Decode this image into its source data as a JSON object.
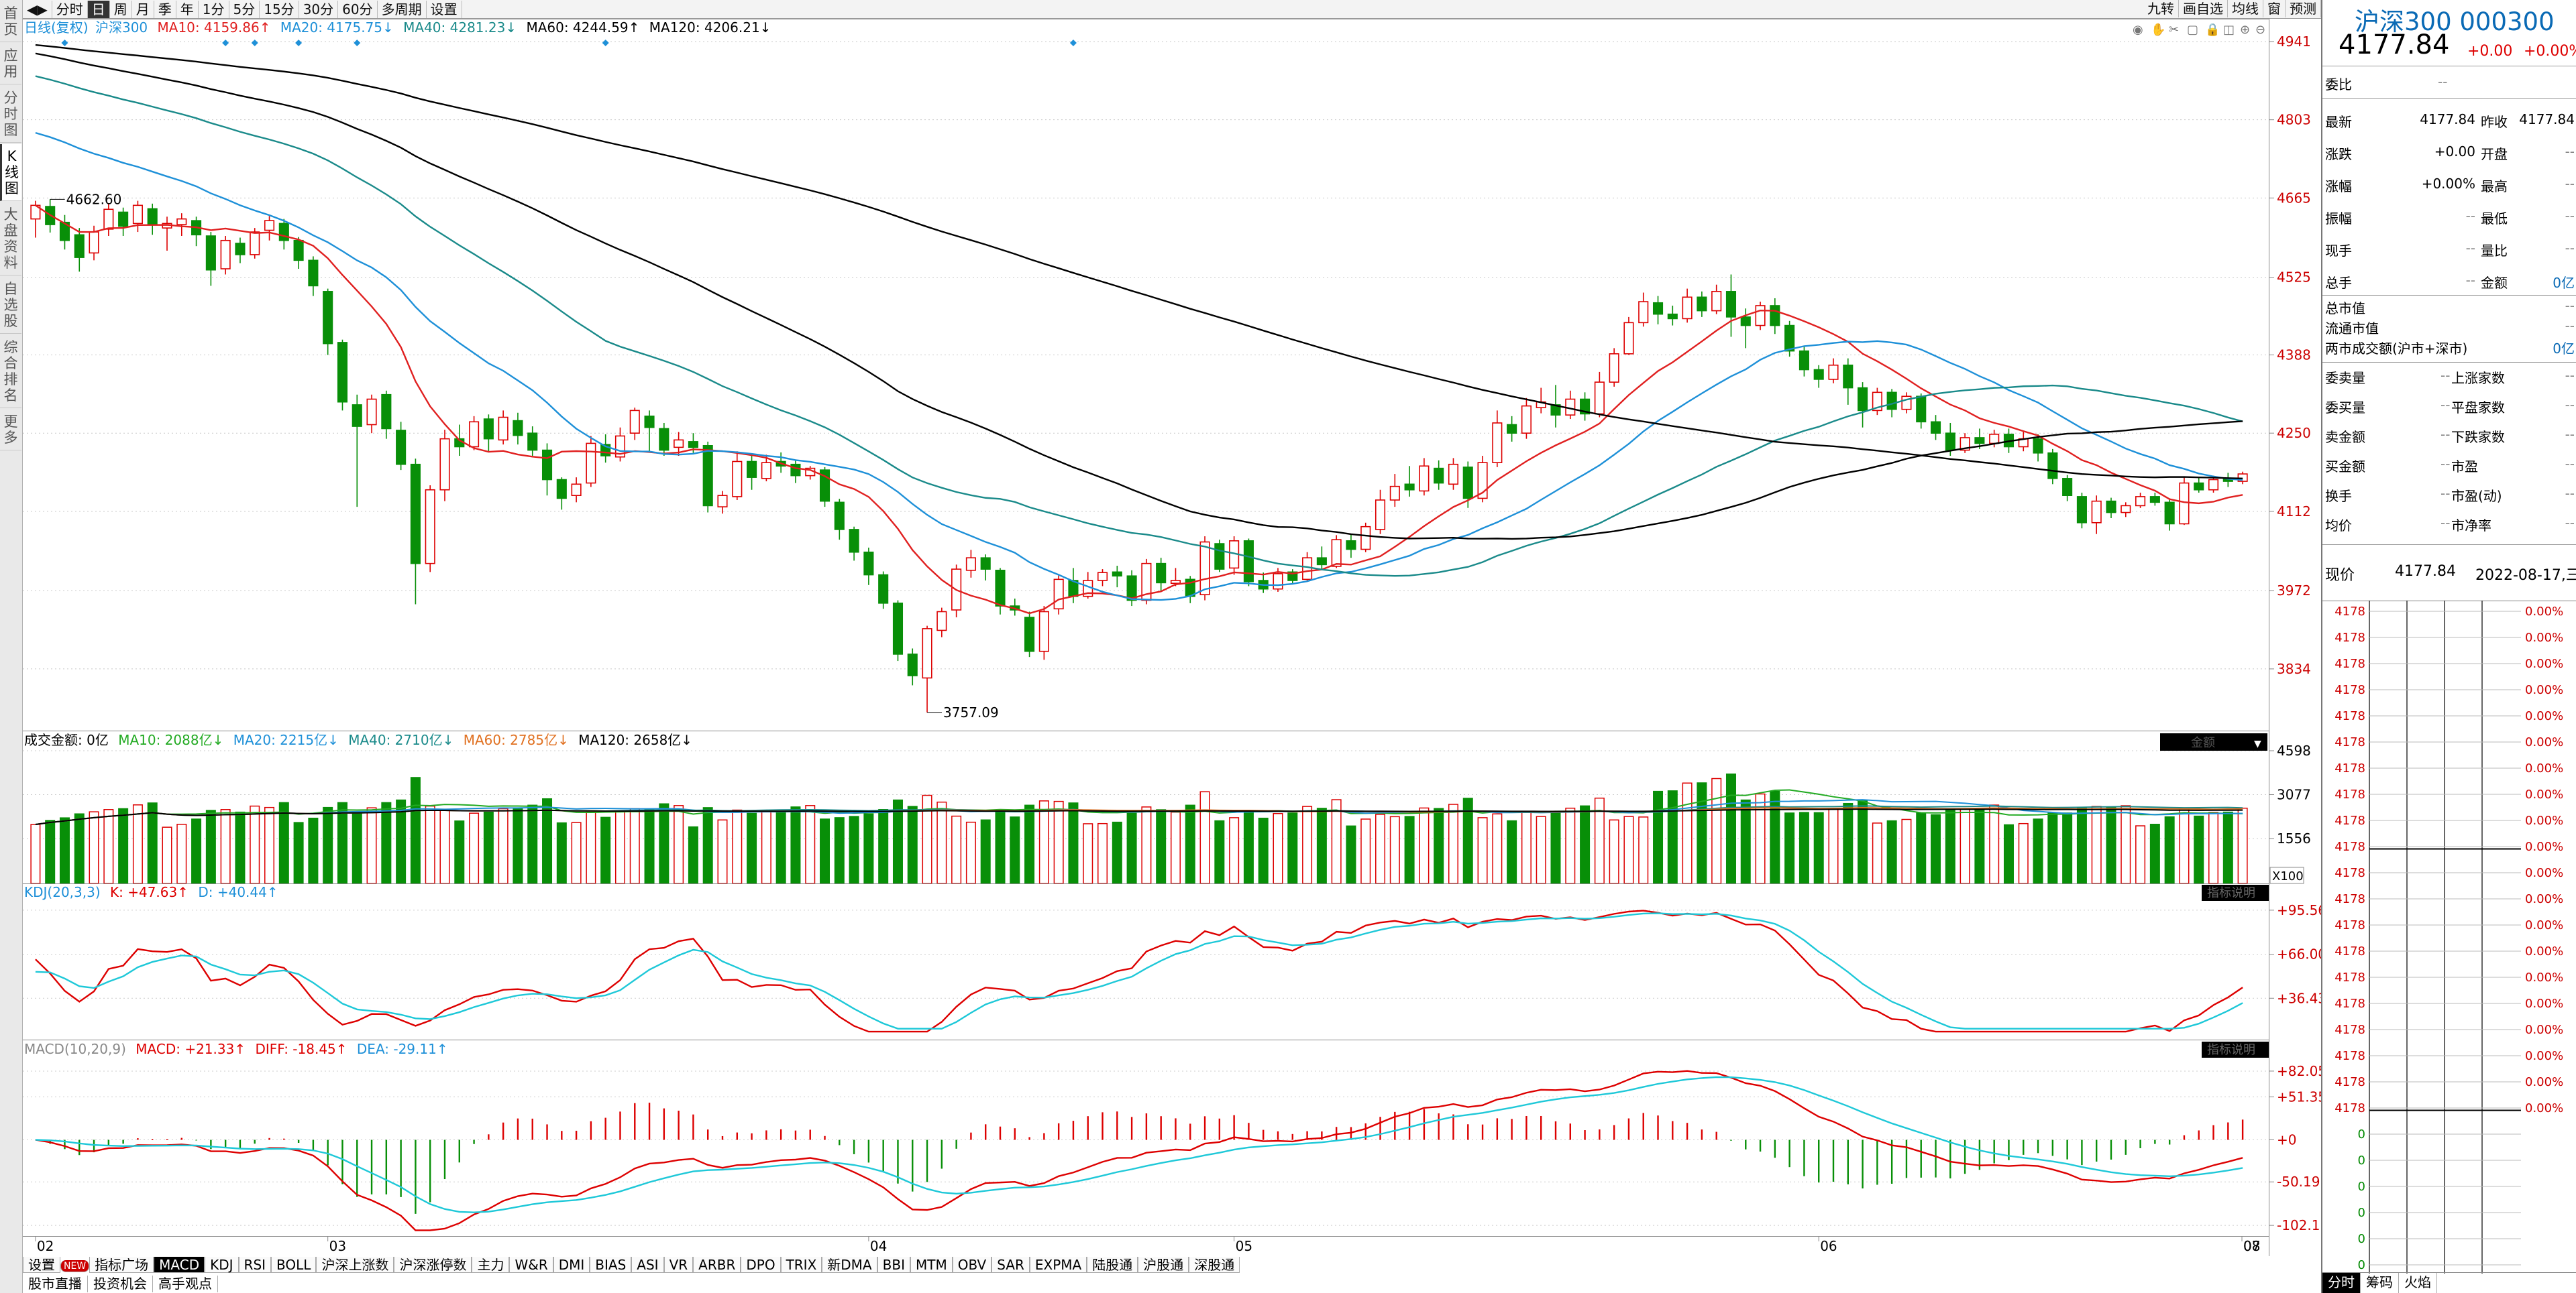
{
  "left_rail": [
    "首页",
    "应用",
    "分时图",
    "K线图",
    "大盘资料",
    "自选股",
    "综合排名",
    "更多"
  ],
  "left_rail_active": 3,
  "top_bar": {
    "periods": [
      "分时",
      "日",
      "周",
      "月",
      "季",
      "年",
      "1分",
      "5分",
      "15分",
      "30分",
      "60分",
      "多周期",
      "设置"
    ],
    "active_period": 1,
    "right_buttons": [
      "九转",
      "画自选",
      "均线",
      "窗",
      "预测"
    ]
  },
  "ma_legend": {
    "title": "日线(复权)",
    "name": "沪深300",
    "items": [
      {
        "label": "MA10: 4159.86↑",
        "color": "#e02020"
      },
      {
        "label": "MA20: 4175.75↓",
        "color": "#1e90d8"
      },
      {
        "label": "MA40: 4281.23↓",
        "color": "#1a8a8a"
      },
      {
        "label": "MA60: 4244.59↑",
        "color": "#000000"
      },
      {
        "label": "MA120: 4206.21↓",
        "color": "#000000"
      }
    ]
  },
  "price_axis": {
    "ticks": [
      "4941",
      "4803",
      "4665",
      "4525",
      "4388",
      "4250",
      "4112",
      "3972",
      "3834"
    ]
  },
  "annotations": {
    "high": "4662.60",
    "low": "3757.09"
  },
  "volume_legend": {
    "title": "成交金额: 0亿",
    "items": [
      {
        "label": "MA10: 2088亿↓",
        "color": "#22aa22"
      },
      {
        "label": "MA20: 2215亿↓",
        "color": "#1e90d8"
      },
      {
        "label": "MA40: 2710亿↓",
        "color": "#1a8a8a"
      },
      {
        "label": "MA60: 2785亿↓",
        "color": "#e07020"
      },
      {
        "label": "MA120: 2658亿↓",
        "color": "#000000"
      }
    ],
    "dropdown_label": "金额",
    "ticks": [
      "4598",
      "3077",
      "1556"
    ],
    "unit": "X100"
  },
  "kdj_legend": {
    "title": "KDJ(20,3,3)",
    "k": "K: +47.63↑",
    "d": "D: +40.44↑",
    "ticks": [
      "+95.56",
      "+66.00",
      "+36.43"
    ],
    "badge": "指标说明"
  },
  "macd_legend": {
    "title": "MACD(10,20,9)",
    "macd": "MACD: +21.33↑",
    "diff": "DIFF: -18.45↑",
    "dea": "DEA: -29.11↑",
    "ticks": [
      "+82.05",
      "+51.35",
      "+0",
      "-50.19",
      "-102.1"
    ],
    "badge": "指标说明"
  },
  "x_axis": {
    "labels": [
      "02",
      "03",
      "04",
      "05",
      "06",
      "07",
      "08"
    ]
  },
  "indicator_tabs": [
    "设置",
    "NEW",
    "指标广场",
    "MACD",
    "KDJ",
    "RSI",
    "BOLL",
    "沪深上涨数",
    "沪深涨停数",
    "主力",
    "W&R",
    "DMI",
    "BIAS",
    "ASI",
    "VR",
    "ARBR",
    "DPO",
    "TRIX",
    "新DMA",
    "BBI",
    "MTM",
    "OBV",
    "SAR",
    "EXPMA",
    "陆股通",
    "沪股通",
    "深股通"
  ],
  "bottom_tabs": [
    "股市直播",
    "投资机会",
    "高手观点"
  ],
  "right_panel": {
    "title": "沪深300 000300",
    "price": "4177.84",
    "change": "+0.00",
    "change_pct": "+0.00%",
    "weibi_label": "委比",
    "weibi_value": "--",
    "quote_rows": [
      {
        "l1": "最新",
        "v1": "4177.84",
        "l2": "昨收",
        "v2": "4177.84"
      },
      {
        "l1": "涨跌",
        "v1": "+0.00",
        "l2": "开盘",
        "v2": "--"
      },
      {
        "l1": "涨幅",
        "v1": "+0.00%",
        "l2": "最高",
        "v2": "--"
      },
      {
        "l1": "振幅",
        "v1": "--",
        "l2": "最低",
        "v2": "--"
      },
      {
        "l1": "现手",
        "v1": "--",
        "l2": "量比",
        "v2": "--"
      },
      {
        "l1": "总手",
        "v1": "--",
        "l2": "金额",
        "v2": "0亿"
      }
    ],
    "cap_rows": [
      {
        "l": "总市值",
        "v": "--"
      },
      {
        "l": "流通市值",
        "v": "--"
      },
      {
        "l": "两市成交额(沪市+深市)",
        "v": "0亿"
      }
    ],
    "breadth_rows": [
      {
        "l1": "委卖量",
        "v1": "--",
        "l2": "上涨家数",
        "v2": "--"
      },
      {
        "l1": "委买量",
        "v1": "--",
        "l2": "平盘家数",
        "v2": "--"
      },
      {
        "l1": "卖金额",
        "v1": "--",
        "l2": "下跌家数",
        "v2": "--"
      },
      {
        "l1": "买金额",
        "v1": "--",
        "l2": "市盈",
        "v2": "--"
      },
      {
        "l1": "换手",
        "v1": "--",
        "l2": "市盈(动)",
        "v2": "--"
      },
      {
        "l1": "均价",
        "v1": "--",
        "l2": "市净率",
        "v2": "--"
      }
    ],
    "now_label": "现价",
    "now_price": "4177.84",
    "now_date": "2022-08-17,三",
    "mini_left": [
      "4178",
      "4178",
      "4178",
      "4178",
      "4178",
      "4178",
      "4178",
      "4178",
      "4178",
      "4178",
      "4178",
      "4178",
      "4178",
      "4178",
      "4178",
      "4178",
      "4178",
      "4178",
      "4178",
      "4178",
      "0",
      "0",
      "0",
      "0",
      "0",
      "0",
      "0",
      "0",
      "0"
    ],
    "mini_right": [
      "0.00%",
      "0.00%",
      "0.00%",
      "0.00%",
      "0.00%",
      "0.00%",
      "0.00%",
      "0.00%",
      "0.00%",
      "0.00%",
      "0.00%",
      "0.00%",
      "0.00%",
      "0.00%",
      "0.00%",
      "0.00%",
      "0.00%",
      "0.00%",
      "0.00%",
      "0.00%"
    ],
    "bottom_tabs": [
      "分时",
      "筹码",
      "火焰"
    ]
  },
  "chart_data": {
    "type": "candlestick",
    "price_range": [
      3757,
      4941
    ],
    "candles": [
      [
        4628,
        4652,
        4595,
        4660
      ],
      [
        4650,
        4618,
        4604,
        4662.6
      ],
      [
        4622,
        4590,
        4574,
        4635
      ],
      [
        4600,
        4560,
        4535,
        4612
      ],
      [
        4568,
        4605,
        4555,
        4616
      ],
      [
        4610,
        4645,
        4598,
        4656
      ],
      [
        4640,
        4615,
        4598,
        4648
      ],
      [
        4620,
        4652,
        4605,
        4660
      ],
      [
        4646,
        4618,
        4600,
        4655
      ],
      [
        4612,
        4620,
        4572,
        4632
      ],
      [
        4618,
        4628,
        4598,
        4638
      ],
      [
        4625,
        4600,
        4580,
        4632
      ],
      [
        4598,
        4538,
        4510,
        4605
      ],
      [
        4540,
        4590,
        4530,
        4598
      ],
      [
        4585,
        4565,
        4550,
        4595
      ],
      [
        4565,
        4605,
        4558,
        4612
      ],
      [
        4608,
        4625,
        4590,
        4633
      ],
      [
        4620,
        4590,
        4574,
        4628
      ],
      [
        4590,
        4555,
        4540,
        4596
      ],
      [
        4555,
        4510,
        4492,
        4562
      ],
      [
        4500,
        4408,
        4388,
        4505
      ],
      [
        4410,
        4305,
        4290,
        4415
      ],
      [
        4300,
        4262,
        4120,
        4318
      ],
      [
        4265,
        4310,
        4250,
        4318
      ],
      [
        4318,
        4258,
        4240,
        4325
      ],
      [
        4255,
        4195,
        4185,
        4270
      ],
      [
        4195,
        4020,
        3948,
        4205
      ],
      [
        4020,
        4150,
        4005,
        4158
      ],
      [
        4150,
        4240,
        4130,
        4256
      ],
      [
        4240,
        4226,
        4210,
        4265
      ],
      [
        4226,
        4270,
        4220,
        4280
      ],
      [
        4275,
        4240,
        4218,
        4283
      ],
      [
        4238,
        4278,
        4230,
        4290
      ],
      [
        4272,
        4246,
        4230,
        4286
      ],
      [
        4250,
        4220,
        4210,
        4262
      ],
      [
        4220,
        4168,
        4140,
        4232
      ],
      [
        4168,
        4135,
        4115,
        4172
      ],
      [
        4140,
        4160,
        4128,
        4172
      ],
      [
        4162,
        4232,
        4155,
        4245
      ],
      [
        4230,
        4210,
        4198,
        4248
      ],
      [
        4208,
        4245,
        4200,
        4260
      ],
      [
        4250,
        4290,
        4238,
        4295
      ],
      [
        4280,
        4260,
        4218,
        4290
      ],
      [
        4258,
        4220,
        4210,
        4268
      ],
      [
        4225,
        4238,
        4210,
        4252
      ],
      [
        4235,
        4225,
        4215,
        4250
      ],
      [
        4228,
        4122,
        4110,
        4235
      ],
      [
        4120,
        4140,
        4108,
        4148
      ],
      [
        4138,
        4200,
        4132,
        4218
      ],
      [
        4200,
        4172,
        4150,
        4210
      ],
      [
        4170,
        4198,
        4165,
        4212
      ],
      [
        4200,
        4192,
        4180,
        4216
      ],
      [
        4195,
        4175,
        4162,
        4203
      ],
      [
        4175,
        4188,
        4168,
        4192
      ],
      [
        4185,
        4130,
        4120,
        4190
      ],
      [
        4128,
        4080,
        4062,
        4134
      ],
      [
        4080,
        4040,
        4025,
        4085
      ],
      [
        4040,
        4000,
        3982,
        4048
      ],
      [
        4000,
        3950,
        3940,
        4006
      ],
      [
        3950,
        3860,
        3848,
        3955
      ],
      [
        3860,
        3822,
        3805,
        3870
      ],
      [
        3818,
        3905,
        3757.09,
        3910
      ],
      [
        3902,
        3935,
        3890,
        3942
      ],
      [
        3938,
        4010,
        3925,
        4018
      ],
      [
        4008,
        4030,
        3995,
        4044
      ],
      [
        4030,
        4010,
        3990,
        4036
      ],
      [
        4008,
        3945,
        3930,
        4012
      ],
      [
        3945,
        3938,
        3928,
        3958
      ],
      [
        3925,
        3865,
        3855,
        3935
      ],
      [
        3865,
        3935,
        3850,
        3945
      ],
      [
        3940,
        3992,
        3930,
        4000
      ],
      [
        3990,
        3962,
        3950,
        4012
      ],
      [
        3962,
        3990,
        3958,
        4005
      ],
      [
        3990,
        4004,
        3980,
        4010
      ],
      [
        4005,
        3998,
        3978,
        4016
      ],
      [
        3998,
        3955,
        3945,
        4008
      ],
      [
        3955,
        4020,
        3948,
        4028
      ],
      [
        4020,
        3986,
        3972,
        4030
      ],
      [
        3985,
        3990,
        3980,
        4012
      ],
      [
        3992,
        3962,
        3950,
        3998
      ],
      [
        3965,
        4058,
        3955,
        4068
      ],
      [
        4055,
        4010,
        4005,
        4062
      ],
      [
        4012,
        4060,
        4000,
        4068
      ],
      [
        4060,
        3988,
        3980,
        4064
      ],
      [
        3990,
        3975,
        3968,
        4004
      ],
      [
        3975,
        4002,
        3970,
        4012
      ],
      [
        4005,
        3990,
        3985,
        4010
      ],
      [
        3992,
        4030,
        3988,
        4040
      ],
      [
        4030,
        4018,
        4010,
        4050
      ],
      [
        4015,
        4062,
        4012,
        4070
      ],
      [
        4060,
        4045,
        4030,
        4072
      ],
      [
        4045,
        4085,
        4040,
        4092
      ],
      [
        4080,
        4132,
        4072,
        4150
      ],
      [
        4132,
        4156,
        4120,
        4178
      ],
      [
        4160,
        4150,
        4138,
        4192
      ],
      [
        4148,
        4192,
        4140,
        4206
      ],
      [
        4188,
        4162,
        4150,
        4202
      ],
      [
        4160,
        4195,
        4150,
        4206
      ],
      [
        4190,
        4135,
        4118,
        4200
      ],
      [
        4135,
        4198,
        4128,
        4210
      ],
      [
        4198,
        4268,
        4190,
        4290
      ],
      [
        4265,
        4250,
        4235,
        4280
      ],
      [
        4250,
        4298,
        4240,
        4312
      ],
      [
        4295,
        4305,
        4285,
        4330
      ],
      [
        4300,
        4282,
        4260,
        4335
      ],
      [
        4282,
        4310,
        4275,
        4325
      ],
      [
        4310,
        4284,
        4272,
        4322
      ],
      [
        4284,
        4340,
        4278,
        4358
      ],
      [
        4340,
        4390,
        4332,
        4400
      ],
      [
        4390,
        4445,
        4388,
        4455
      ],
      [
        4445,
        4482,
        4438,
        4498
      ],
      [
        4480,
        4460,
        4442,
        4492
      ],
      [
        4460,
        4452,
        4440,
        4475
      ],
      [
        4452,
        4490,
        4445,
        4505
      ],
      [
        4490,
        4466,
        4455,
        4500
      ],
      [
        4466,
        4500,
        4460,
        4512
      ],
      [
        4500,
        4455,
        4420,
        4530
      ],
      [
        4455,
        4440,
        4400,
        4470
      ],
      [
        4440,
        4475,
        4432,
        4482
      ],
      [
        4475,
        4440,
        4425,
        4488
      ],
      [
        4440,
        4395,
        4385,
        4448
      ],
      [
        4395,
        4362,
        4350,
        4404
      ],
      [
        4362,
        4345,
        4330,
        4370
      ],
      [
        4345,
        4370,
        4338,
        4382
      ],
      [
        4370,
        4330,
        4300,
        4382
      ],
      [
        4330,
        4290,
        4260,
        4340
      ],
      [
        4290,
        4322,
        4282,
        4330
      ],
      [
        4322,
        4292,
        4278,
        4328
      ],
      [
        4292,
        4315,
        4285,
        4322
      ],
      [
        4315,
        4270,
        4258,
        4320
      ],
      [
        4270,
        4250,
        4238,
        4282
      ],
      [
        4250,
        4220,
        4210,
        4268
      ],
      [
        4220,
        4242,
        4215,
        4250
      ],
      [
        4242,
        4232,
        4222,
        4258
      ],
      [
        4232,
        4248,
        4225,
        4256
      ],
      [
        4248,
        4226,
        4215,
        4258
      ],
      [
        4226,
        4240,
        4218,
        4252
      ],
      [
        4240,
        4215,
        4200,
        4248
      ],
      [
        4215,
        4170,
        4160,
        4222
      ],
      [
        4170,
        4140,
        4130,
        4176
      ],
      [
        4138,
        4092,
        4082,
        4145
      ],
      [
        4092,
        4130,
        4072,
        4140
      ],
      [
        4130,
        4110,
        4100,
        4136
      ],
      [
        4110,
        4122,
        4102,
        4128
      ],
      [
        4122,
        4138,
        4118,
        4145
      ],
      [
        4138,
        4128,
        4122,
        4145
      ],
      [
        4128,
        4090,
        4078,
        4135
      ],
      [
        4090,
        4162,
        4088,
        4172
      ],
      [
        4162,
        4150,
        4145,
        4172
      ],
      [
        4150,
        4168,
        4145,
        4175
      ],
      [
        4170,
        4165,
        4155,
        4180
      ],
      [
        4165,
        4178,
        4160,
        4182
      ]
    ]
  }
}
